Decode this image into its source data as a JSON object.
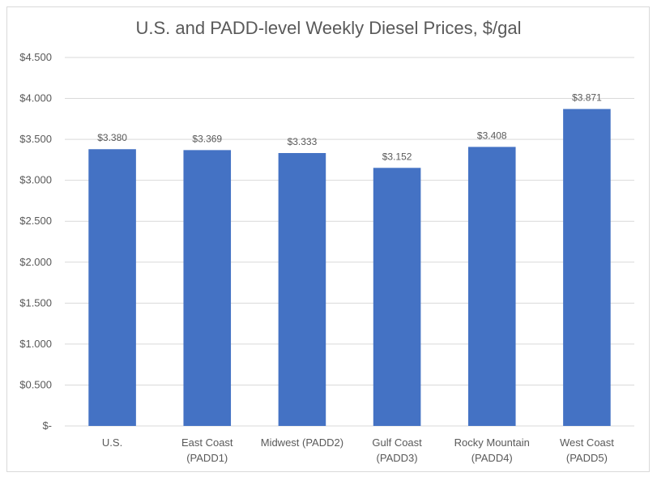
{
  "chart_data": {
    "type": "bar",
    "title": "U.S. and PADD-level Weekly Diesel Prices, $/gal",
    "xlabel": "",
    "ylabel": "",
    "categories": [
      [
        "U.S."
      ],
      [
        "East Coast",
        "(PADD1)"
      ],
      [
        "Midwest (PADD2)"
      ],
      [
        "Gulf Coast",
        "(PADD3)"
      ],
      [
        "Rocky Mountain",
        "(PADD4)"
      ],
      [
        "West Coast",
        "(PADD5)"
      ]
    ],
    "values": [
      3.38,
      3.369,
      3.333,
      3.152,
      3.408,
      3.871
    ],
    "data_labels": [
      "$3.380",
      "$3.369",
      "$3.333",
      "$3.152",
      "$3.408",
      "$3.871"
    ],
    "ylim": [
      0,
      4.5
    ],
    "yticks": [
      0,
      0.5,
      1.0,
      1.5,
      2.0,
      2.5,
      3.0,
      3.5,
      4.0,
      4.5
    ],
    "ytick_labels": [
      "$-",
      "$0.500",
      "$1.000",
      "$1.500",
      "$2.000",
      "$2.500",
      "$3.000",
      "$3.500",
      "$4.000",
      "$4.500"
    ],
    "grid": true,
    "legend": "none",
    "colors": {
      "bar": "#4472C4",
      "grid": "#d9d9d9",
      "text": "#595959"
    }
  }
}
